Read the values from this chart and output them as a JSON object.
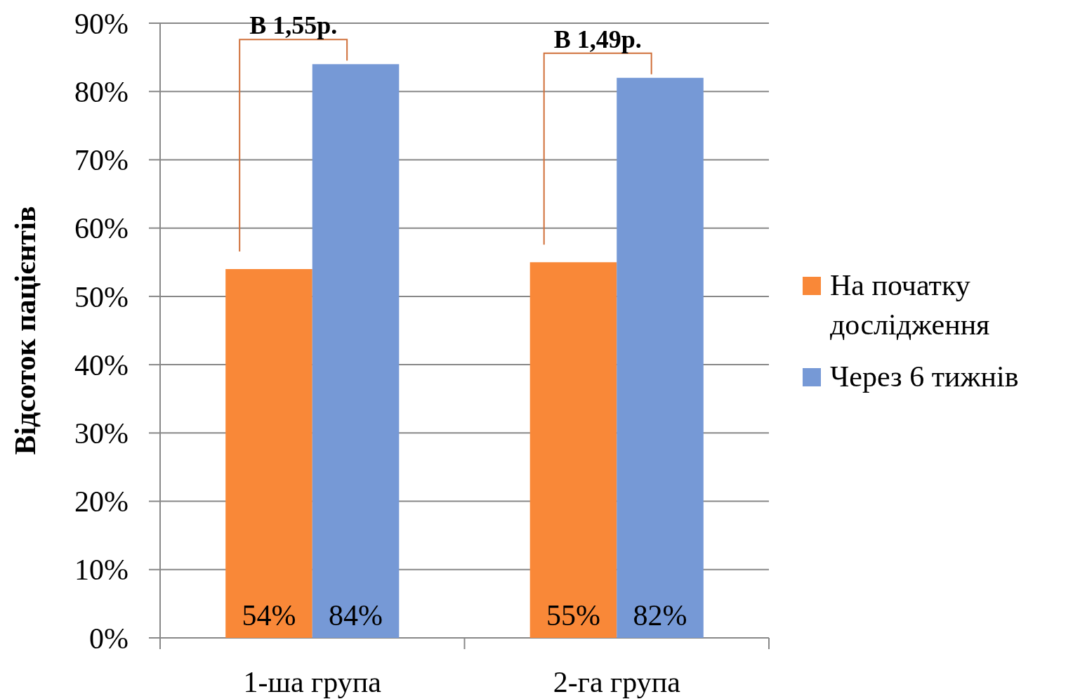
{
  "chart_data": {
    "type": "bar",
    "categories": [
      "1-ша група",
      "2-га група"
    ],
    "series": [
      {
        "name": "На початку дослідження",
        "color": "#f98838",
        "values": [
          54,
          55
        ],
        "value_labels": [
          "54%",
          "55%"
        ]
      },
      {
        "name": "Через 6 тижнів",
        "color": "#7699d6",
        "values": [
          84,
          82
        ],
        "value_labels": [
          "84%",
          "82%"
        ]
      }
    ],
    "ylabel": "Відсоток пацієнтів",
    "ylim": [
      0,
      90
    ],
    "yticks": [
      {
        "value": 0,
        "label": "0%"
      },
      {
        "value": 10,
        "label": "10%"
      },
      {
        "value": 20,
        "label": "20%"
      },
      {
        "value": 30,
        "label": "30%"
      },
      {
        "value": 40,
        "label": "40%"
      },
      {
        "value": 50,
        "label": "50%"
      },
      {
        "value": 60,
        "label": "60%"
      },
      {
        "value": 70,
        "label": "70%"
      },
      {
        "value": 80,
        "label": "80%"
      },
      {
        "value": 90,
        "label": "90%"
      }
    ],
    "annotations": [
      "В 1,55р.",
      "В 1,49р."
    ],
    "grid": "y",
    "legend": "right"
  }
}
